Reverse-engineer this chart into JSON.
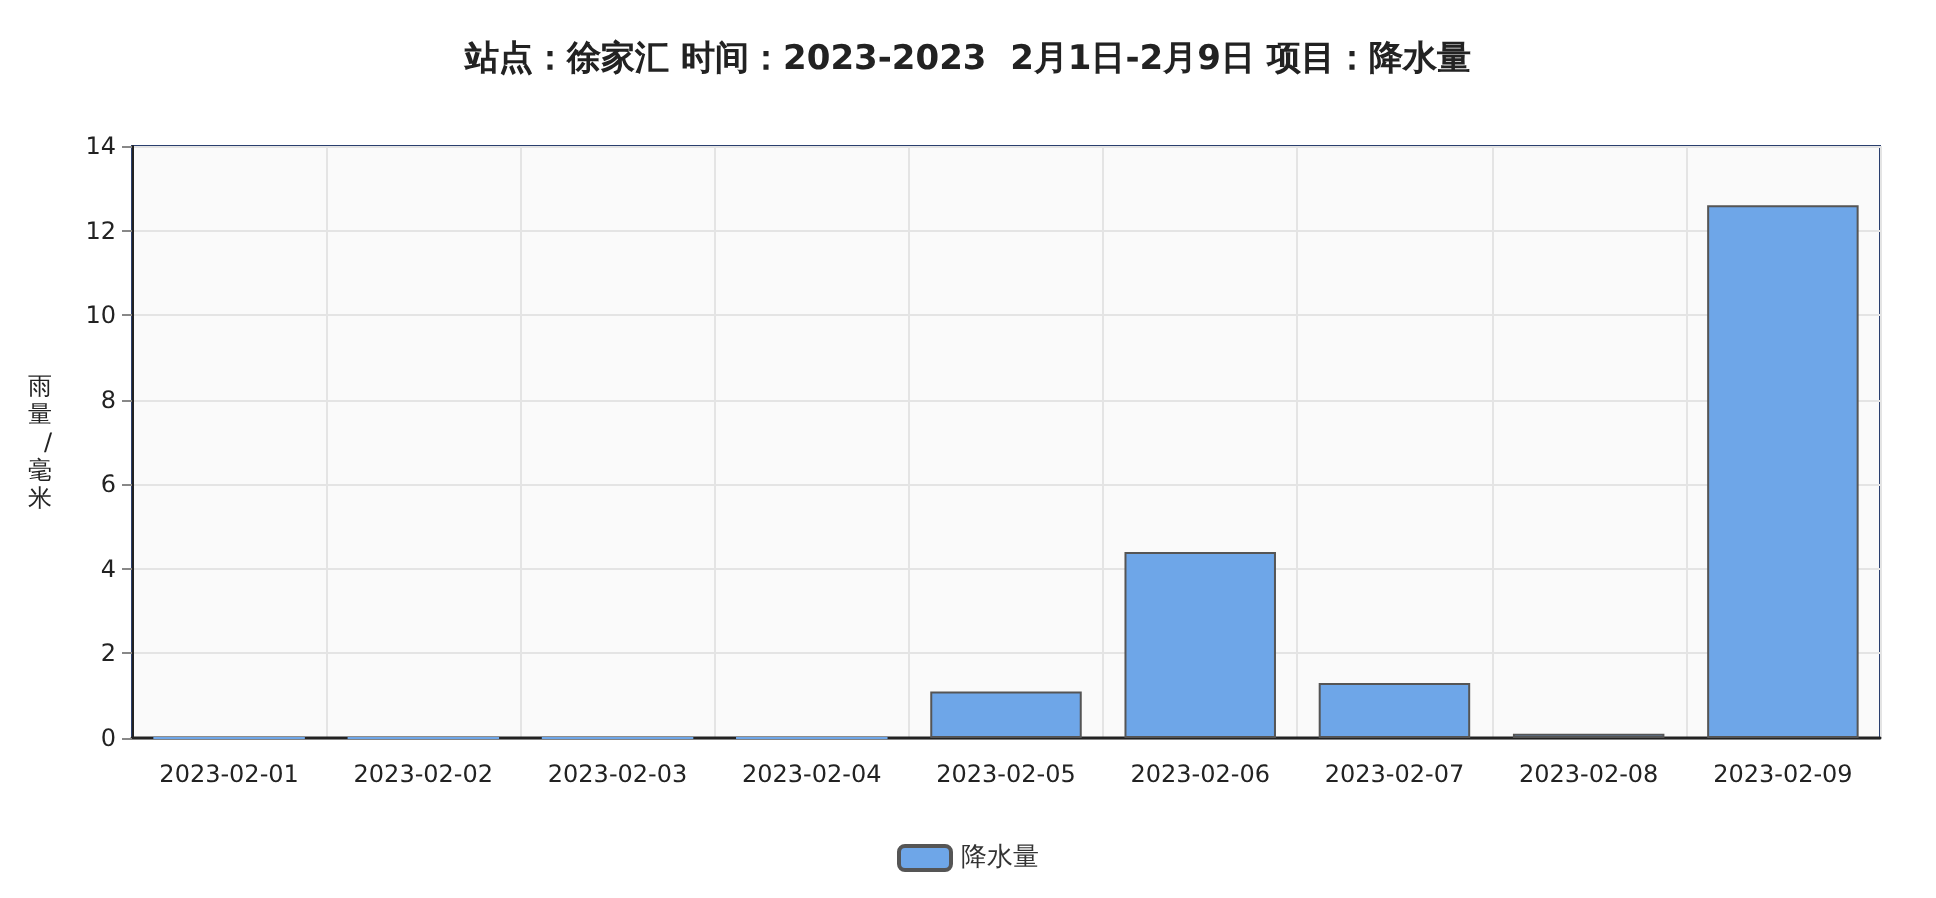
{
  "chart_data": {
    "type": "bar",
    "title": "站点：徐家汇 时间：2023-2023  2月1日-2月9日 项目：降水量",
    "ylabel": "雨量/毫米",
    "categories": [
      "2023-02-01",
      "2023-02-02",
      "2023-02-03",
      "2023-02-04",
      "2023-02-05",
      "2023-02-06",
      "2023-02-07",
      "2023-02-08",
      "2023-02-09"
    ],
    "series": [
      {
        "name": "降水量",
        "color": "#6ea6e8",
        "values": [
          0,
          0,
          0,
          0,
          1.1,
          4.4,
          1.3,
          0.1,
          12.6
        ]
      }
    ],
    "ylim": [
      0,
      14
    ],
    "yticks": [
      0,
      2,
      4,
      6,
      8,
      10,
      12,
      14
    ],
    "grid": true,
    "legend": "bottom"
  }
}
